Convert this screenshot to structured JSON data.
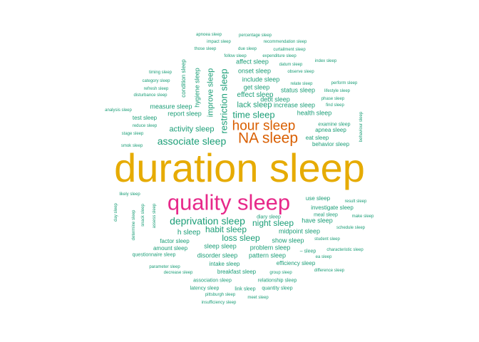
{
  "palette": {
    "teal": "#1b9e77",
    "orange": "#d95f02",
    "magenta": "#e7298a",
    "gold": "#e6ab02"
  },
  "words": [
    {
      "text": "duration sleep",
      "weight": 56,
      "color": "gold"
    },
    {
      "text": "quality sleep",
      "weight": 31,
      "color": "magenta"
    },
    {
      "text": "NA sleep",
      "weight": 21,
      "color": "orange"
    },
    {
      "text": "hour sleep",
      "weight": 19,
      "color": "orange"
    },
    {
      "text": "associate sleep",
      "weight": 14,
      "color": "teal"
    },
    {
      "text": "deprivation sleep",
      "weight": 14,
      "color": "teal"
    },
    {
      "text": "restriction sleep",
      "weight": 13,
      "color": "teal"
    },
    {
      "text": "time sleep",
      "weight": 13,
      "color": "teal"
    },
    {
      "text": "activity sleep",
      "weight": 11,
      "color": "teal"
    },
    {
      "text": "habit sleep",
      "weight": 12,
      "color": "teal"
    },
    {
      "text": "night sleep",
      "weight": 12,
      "color": "teal"
    },
    {
      "text": "loss sleep",
      "weight": 12,
      "color": "teal"
    },
    {
      "text": "lack sleep",
      "weight": 11,
      "color": "teal"
    },
    {
      "text": "improve sleep",
      "weight": 11,
      "color": "teal"
    },
    {
      "text": "effect sleep",
      "weight": 10,
      "color": "teal"
    },
    {
      "text": "h sleep",
      "weight": 10,
      "color": "teal"
    },
    {
      "text": "hygiene sleep",
      "weight": 9,
      "color": "teal"
    },
    {
      "text": "report sleep",
      "weight": 9,
      "color": "teal"
    },
    {
      "text": "health sleep",
      "weight": 9,
      "color": "teal"
    },
    {
      "text": "get sleep",
      "weight": 9,
      "color": "teal"
    },
    {
      "text": "onset sleep",
      "weight": 9,
      "color": "teal"
    },
    {
      "text": "measure sleep",
      "weight": 9,
      "color": "teal"
    },
    {
      "text": "midpoint sleep",
      "weight": 9,
      "color": "teal"
    },
    {
      "text": "show sleep",
      "weight": 9,
      "color": "teal"
    },
    {
      "text": "sleep sleep",
      "weight": 9,
      "color": "teal"
    },
    {
      "text": "disorder sleep",
      "weight": 9,
      "color": "teal"
    },
    {
      "text": "pattern sleep",
      "weight": 9,
      "color": "teal"
    },
    {
      "text": "problem sleep",
      "weight": 9,
      "color": "teal"
    },
    {
      "text": "have sleep",
      "weight": 9,
      "color": "teal"
    },
    {
      "text": "include sleep",
      "weight": 9,
      "color": "teal"
    },
    {
      "text": "debt sleep",
      "weight": 9,
      "color": "teal"
    },
    {
      "text": "status sleep",
      "weight": 9,
      "color": "teal"
    },
    {
      "text": "increase sleep",
      "weight": 9,
      "color": "teal"
    },
    {
      "text": "condition sleep",
      "weight": 8,
      "color": "teal"
    },
    {
      "text": "affect sleep",
      "weight": 9,
      "color": "teal"
    },
    {
      "text": "test sleep",
      "weight": 8,
      "color": "teal"
    },
    {
      "text": "eat sleep",
      "weight": 8,
      "color": "teal"
    },
    {
      "text": "behavior sleep",
      "weight": 8,
      "color": "teal"
    },
    {
      "text": "apnea sleep",
      "weight": 8,
      "color": "teal"
    },
    {
      "text": "use sleep",
      "weight": 8,
      "color": "teal"
    },
    {
      "text": "investigate sleep",
      "weight": 8,
      "color": "teal"
    },
    {
      "text": "factor sleep",
      "weight": 8,
      "color": "teal"
    },
    {
      "text": "amount sleep",
      "weight": 8,
      "color": "teal"
    },
    {
      "text": "intake sleep",
      "weight": 8,
      "color": "teal"
    },
    {
      "text": "efficiency sleep",
      "weight": 8,
      "color": "teal"
    },
    {
      "text": "breakfast sleep",
      "weight": 8,
      "color": "teal"
    },
    {
      "text": "– sleep",
      "weight": 7,
      "color": "teal"
    },
    {
      "text": "questionnaire sleep",
      "weight": 7,
      "color": "teal"
    },
    {
      "text": "examine sleep",
      "weight": 7,
      "color": "teal"
    },
    {
      "text": "meal sleep",
      "weight": 7,
      "color": "teal"
    },
    {
      "text": "diary sleep",
      "weight": 7,
      "color": "teal"
    },
    {
      "text": "association sleep",
      "weight": 7,
      "color": "teal"
    },
    {
      "text": "latency sleep",
      "weight": 7,
      "color": "teal"
    },
    {
      "text": "link sleep",
      "weight": 7,
      "color": "teal"
    },
    {
      "text": "relationship sleep",
      "weight": 7,
      "color": "teal"
    },
    {
      "text": "quantity sleep",
      "weight": 7,
      "color": "teal"
    },
    {
      "text": "pittsburgh sleep",
      "weight": 6,
      "color": "teal"
    },
    {
      "text": "meet sleep",
      "weight": 6,
      "color": "teal"
    },
    {
      "text": "insufficiency sleep",
      "weight": 6,
      "color": "teal"
    },
    {
      "text": "parameter sleep",
      "weight": 6,
      "color": "teal"
    },
    {
      "text": "decrease sleep",
      "weight": 6,
      "color": "teal"
    },
    {
      "text": "group sleep",
      "weight": 6,
      "color": "teal"
    },
    {
      "text": "difference sleep",
      "weight": 6,
      "color": "teal"
    },
    {
      "text": "characteristic sleep",
      "weight": 6,
      "color": "teal"
    },
    {
      "text": "ea sleep",
      "weight": 6,
      "color": "teal"
    },
    {
      "text": "student sleep",
      "weight": 6,
      "color": "teal"
    },
    {
      "text": "schedule sleep",
      "weight": 6,
      "color": "teal"
    },
    {
      "text": "make sleep",
      "weight": 6,
      "color": "teal"
    },
    {
      "text": "result sleep",
      "weight": 6,
      "color": "teal"
    },
    {
      "text": "likely sleep",
      "weight": 6,
      "color": "teal"
    },
    {
      "text": "day sleep",
      "weight": 6,
      "color": "teal"
    },
    {
      "text": "determine sleep",
      "weight": 6,
      "color": "teal"
    },
    {
      "text": "snack sleep",
      "weight": 6,
      "color": "teal"
    },
    {
      "text": "assess sleep",
      "weight": 6,
      "color": "teal"
    },
    {
      "text": "analysis sleep",
      "weight": 6,
      "color": "teal"
    },
    {
      "text": "reduce sleep",
      "weight": 6,
      "color": "teal"
    },
    {
      "text": "stage sleep",
      "weight": 6,
      "color": "teal"
    },
    {
      "text": "smok sleep",
      "weight": 6,
      "color": "teal"
    },
    {
      "text": "timing sleep",
      "weight": 6,
      "color": "teal"
    },
    {
      "text": "category sleep",
      "weight": 6,
      "color": "teal"
    },
    {
      "text": "refresh sleep",
      "weight": 6,
      "color": "teal"
    },
    {
      "text": "disturbance sleep",
      "weight": 6,
      "color": "teal"
    },
    {
      "text": "apnoea sleep",
      "weight": 6,
      "color": "teal"
    },
    {
      "text": "percentage sleep",
      "weight": 6,
      "color": "teal"
    },
    {
      "text": "impact sleep",
      "weight": 6,
      "color": "teal"
    },
    {
      "text": "recommendation sleep",
      "weight": 6,
      "color": "teal"
    },
    {
      "text": "those sleep",
      "weight": 6,
      "color": "teal"
    },
    {
      "text": "due sleep",
      "weight": 6,
      "color": "teal"
    },
    {
      "text": "curtailment sleep",
      "weight": 6,
      "color": "teal"
    },
    {
      "text": "follow sleep",
      "weight": 6,
      "color": "teal"
    },
    {
      "text": "expenditure sleep",
      "weight": 6,
      "color": "teal"
    },
    {
      "text": "index sleep",
      "weight": 6,
      "color": "teal"
    },
    {
      "text": "datum sleep",
      "weight": 6,
      "color": "teal"
    },
    {
      "text": "observe sleep",
      "weight": 6,
      "color": "teal"
    },
    {
      "text": "relate sleep",
      "weight": 6,
      "color": "teal"
    },
    {
      "text": "perform sleep",
      "weight": 6,
      "color": "teal"
    },
    {
      "text": "lifestyle sleep",
      "weight": 6,
      "color": "teal"
    },
    {
      "text": "phase sleep",
      "weight": 6,
      "color": "teal"
    },
    {
      "text": "find sleep",
      "weight": 6,
      "color": "teal"
    },
    {
      "text": "behaviour sleep",
      "weight": 6,
      "color": "teal"
    }
  ]
}
